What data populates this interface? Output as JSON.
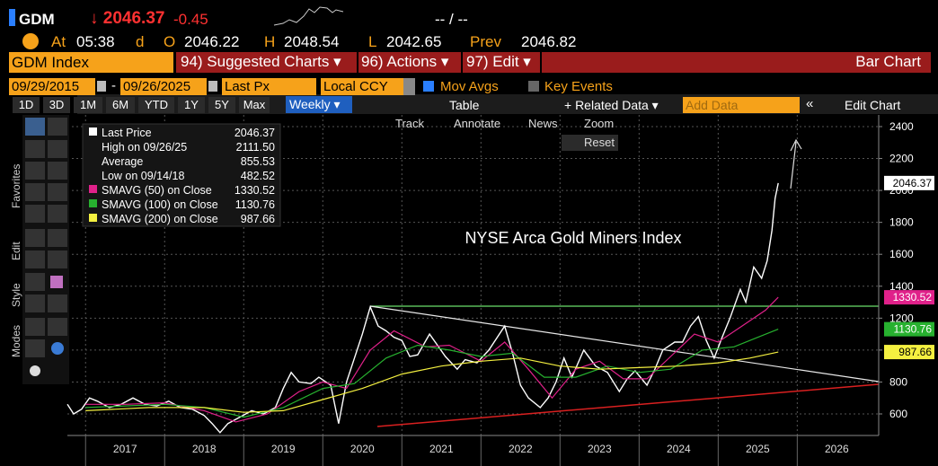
{
  "header": {
    "ticker": "GDM",
    "last": "↓ 2046.37",
    "change": "-0.45",
    "bid_ask": "-- / --",
    "at": "At",
    "time": "05:38",
    "d": "d",
    "o": "O",
    "open": "2046.22",
    "h": "H",
    "high": "2048.54",
    "l": "L",
    "low": "2042.65",
    "prev": "Prev",
    "prev_val": "2046.82"
  },
  "menu": {
    "security": "GDM Index",
    "suggested": "94) Suggested Charts ▾",
    "actions": "96) Actions ▾",
    "edit": "97) Edit ▾",
    "chart_type": "Bar Chart"
  },
  "settings": {
    "start_date": "09/29/2015",
    "dash": "-",
    "end_date": "09/26/2025",
    "field": "Last Px",
    "currency": "Local CCY",
    "mov_avgs": "Mov Avgs",
    "key_events": "Key Events"
  },
  "periods": [
    "1D",
    "3D",
    "1M",
    "6M",
    "YTD",
    "1Y",
    "5Y",
    "Max"
  ],
  "toolbar": {
    "frequency": "Weekly ▾",
    "table": "Table",
    "related": "+ Related Data ▾",
    "add_data": "Add Data",
    "edit_chart": "Edit Chart"
  },
  "chart_tools": [
    "Track",
    "Annotate",
    "News",
    "Zoom",
    "Reset"
  ],
  "side_tabs": [
    "Favorites",
    "Edit",
    "Style",
    "Modes"
  ],
  "legend": [
    {
      "label": "Last Price",
      "value": "2046.37"
    },
    {
      "label": "High on 09/26/25",
      "value": "2111.50"
    },
    {
      "label": "Average",
      "value": "855.53"
    },
    {
      "label": "Low on 09/14/18",
      "value": "482.52"
    },
    {
      "label": "SMAVG (50)  on Close",
      "value": "1330.52"
    },
    {
      "label": "SMAVG (100)  on Close",
      "value": "1130.76"
    },
    {
      "label": "SMAVG (200)  on Close",
      "value": "987.66"
    }
  ],
  "chart_data": {
    "type": "line",
    "title": "NYSE Arca Gold Miners Index",
    "grid": true,
    "xlim": [
      2016.77,
      2027.03
    ],
    "xticks": [
      2017,
      2018,
      2019,
      2020,
      2021,
      2022,
      2023,
      2024,
      2025,
      2026
    ],
    "ylim": [
      465,
      2473
    ],
    "yticks": [
      600,
      800,
      1000,
      1200,
      1400,
      1600,
      1800,
      2000,
      2200,
      2400
    ],
    "series": [
      {
        "name": "Last Price",
        "color": "#ffffff",
        "x": [
          2016.77,
          2016.85,
          2016.95,
          2017.05,
          2017.15,
          2017.3,
          2017.45,
          2017.6,
          2017.75,
          2017.9,
          2018.05,
          2018.2,
          2018.35,
          2018.5,
          2018.6,
          2018.7,
          2018.8,
          2018.95,
          2019.1,
          2019.25,
          2019.4,
          2019.5,
          2019.6,
          2019.7,
          2019.85,
          2019.95,
          2020.1,
          2020.2,
          2020.3,
          2020.4,
          2020.5,
          2020.6,
          2020.7,
          2020.8,
          2020.9,
          2021.0,
          2021.1,
          2021.2,
          2021.35,
          2021.45,
          2021.55,
          2021.7,
          2021.8,
          2021.95,
          2022.1,
          2022.3,
          2022.4,
          2022.5,
          2022.6,
          2022.75,
          2022.85,
          2022.95,
          2023.05,
          2023.15,
          2023.3,
          2023.45,
          2023.6,
          2023.75,
          2023.85,
          2023.95,
          2024.1,
          2024.2,
          2024.3,
          2024.45,
          2024.55,
          2024.65,
          2024.75,
          2024.85,
          2024.95,
          2025.05,
          2025.15,
          2025.28,
          2025.35,
          2025.45,
          2025.55,
          2025.62,
          2025.68,
          2025.72,
          2025.76
        ],
        "values": [
          660,
          600,
          630,
          700,
          680,
          640,
          660,
          700,
          660,
          650,
          680,
          640,
          630,
          590,
          540,
          483,
          540,
          580,
          620,
          600,
          640,
          760,
          860,
          800,
          790,
          830,
          780,
          540,
          800,
          950,
          1100,
          1270,
          1150,
          1120,
          1080,
          1060,
          960,
          970,
          1100,
          1030,
          960,
          880,
          940,
          920,
          1000,
          1150,
          980,
          780,
          700,
          640,
          700,
          800,
          950,
          830,
          1000,
          900,
          860,
          740,
          820,
          870,
          780,
          880,
          1000,
          1050,
          1050,
          1150,
          1210,
          1060,
          950,
          1080,
          1200,
          1380,
          1300,
          1520,
          1450,
          1560,
          1750,
          1950,
          2046.37
        ]
      },
      {
        "name": "SMAVG (50)",
        "color": "#e0218a",
        "x": [
          2017.0,
          2017.5,
          2018.0,
          2018.5,
          2018.9,
          2019.3,
          2019.7,
          2020.0,
          2020.3,
          2020.6,
          2020.9,
          2021.3,
          2021.6,
          2022.0,
          2022.3,
          2022.6,
          2022.9,
          2023.2,
          2023.5,
          2023.8,
          2024.1,
          2024.4,
          2024.7,
          2025.0,
          2025.3,
          2025.6,
          2025.76
        ],
        "values": [
          660,
          660,
          670,
          620,
          550,
          600,
          740,
          800,
          760,
          1000,
          1120,
          1020,
          1030,
          930,
          1050,
          880,
          700,
          880,
          930,
          820,
          820,
          960,
          1100,
          1050,
          1150,
          1250,
          1330.52
        ]
      },
      {
        "name": "SMAVG (100)",
        "color": "#27b12f",
        "x": [
          2017.0,
          2017.5,
          2018.0,
          2018.5,
          2019.0,
          2019.5,
          2020.0,
          2020.4,
          2020.8,
          2021.2,
          2021.6,
          2022.0,
          2022.4,
          2022.8,
          2023.2,
          2023.6,
          2024.0,
          2024.4,
          2024.8,
          2025.2,
          2025.5,
          2025.76
        ],
        "values": [
          640,
          650,
          660,
          640,
          580,
          640,
          760,
          790,
          950,
          1030,
          1000,
          960,
          980,
          830,
          830,
          900,
          860,
          880,
          1000,
          1020,
          1080,
          1130.76
        ]
      },
      {
        "name": "SMAVG (200)",
        "color": "#f4f040",
        "x": [
          2017.0,
          2017.8,
          2018.5,
          2019.0,
          2019.5,
          2020.0,
          2020.5,
          2021.0,
          2021.5,
          2022.0,
          2022.5,
          2023.0,
          2023.5,
          2024.0,
          2024.5,
          2025.0,
          2025.4,
          2025.76
        ],
        "values": [
          620,
          640,
          640,
          610,
          620,
          690,
          760,
          850,
          900,
          930,
          950,
          900,
          880,
          890,
          900,
          920,
          950,
          987.66
        ]
      }
    ]
  }
}
